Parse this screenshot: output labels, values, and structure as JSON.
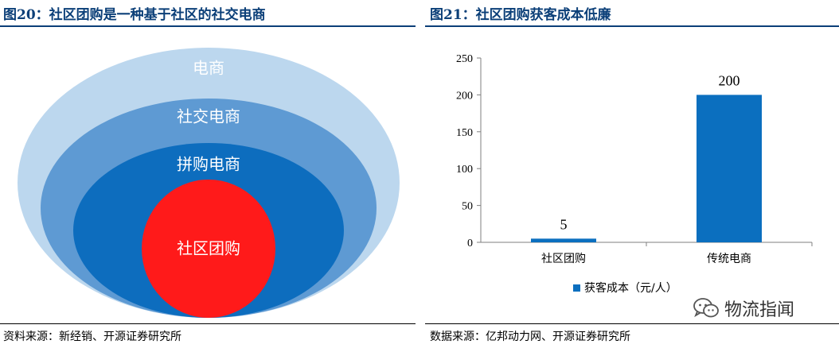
{
  "left_panel": {
    "title": "图20：社区团购是一种基于社区的社交电商",
    "source": "资料来源：新经销、开源证券研究所",
    "rings": [
      {
        "label": "电商",
        "color": "#bcd7ee"
      },
      {
        "label": "社交电商",
        "color": "#5e9ad3"
      },
      {
        "label": "拼购电商",
        "color": "#0d6dbe"
      },
      {
        "label": "社区团购",
        "color": "#ff1a1a"
      }
    ]
  },
  "right_panel": {
    "title": "图21：社区团购获客成本低廉",
    "source": "数据来源：亿邦动力网、开源证券研究所"
  },
  "watermark": {
    "text": "物流指闻",
    "icon": "wechat-icon"
  },
  "chart_data": {
    "type": "bar",
    "categories": [
      "社区团购",
      "传统电商"
    ],
    "series": [
      {
        "name": "获客成本（元/人）",
        "values": [
          5,
          200
        ],
        "color": "#0b6fbf"
      }
    ],
    "ylim": [
      0,
      250
    ],
    "yticks": [
      0,
      50,
      100,
      150,
      200,
      250
    ],
    "data_labels": [
      "5",
      "200"
    ],
    "legend_position": "bottom",
    "grid": false
  }
}
